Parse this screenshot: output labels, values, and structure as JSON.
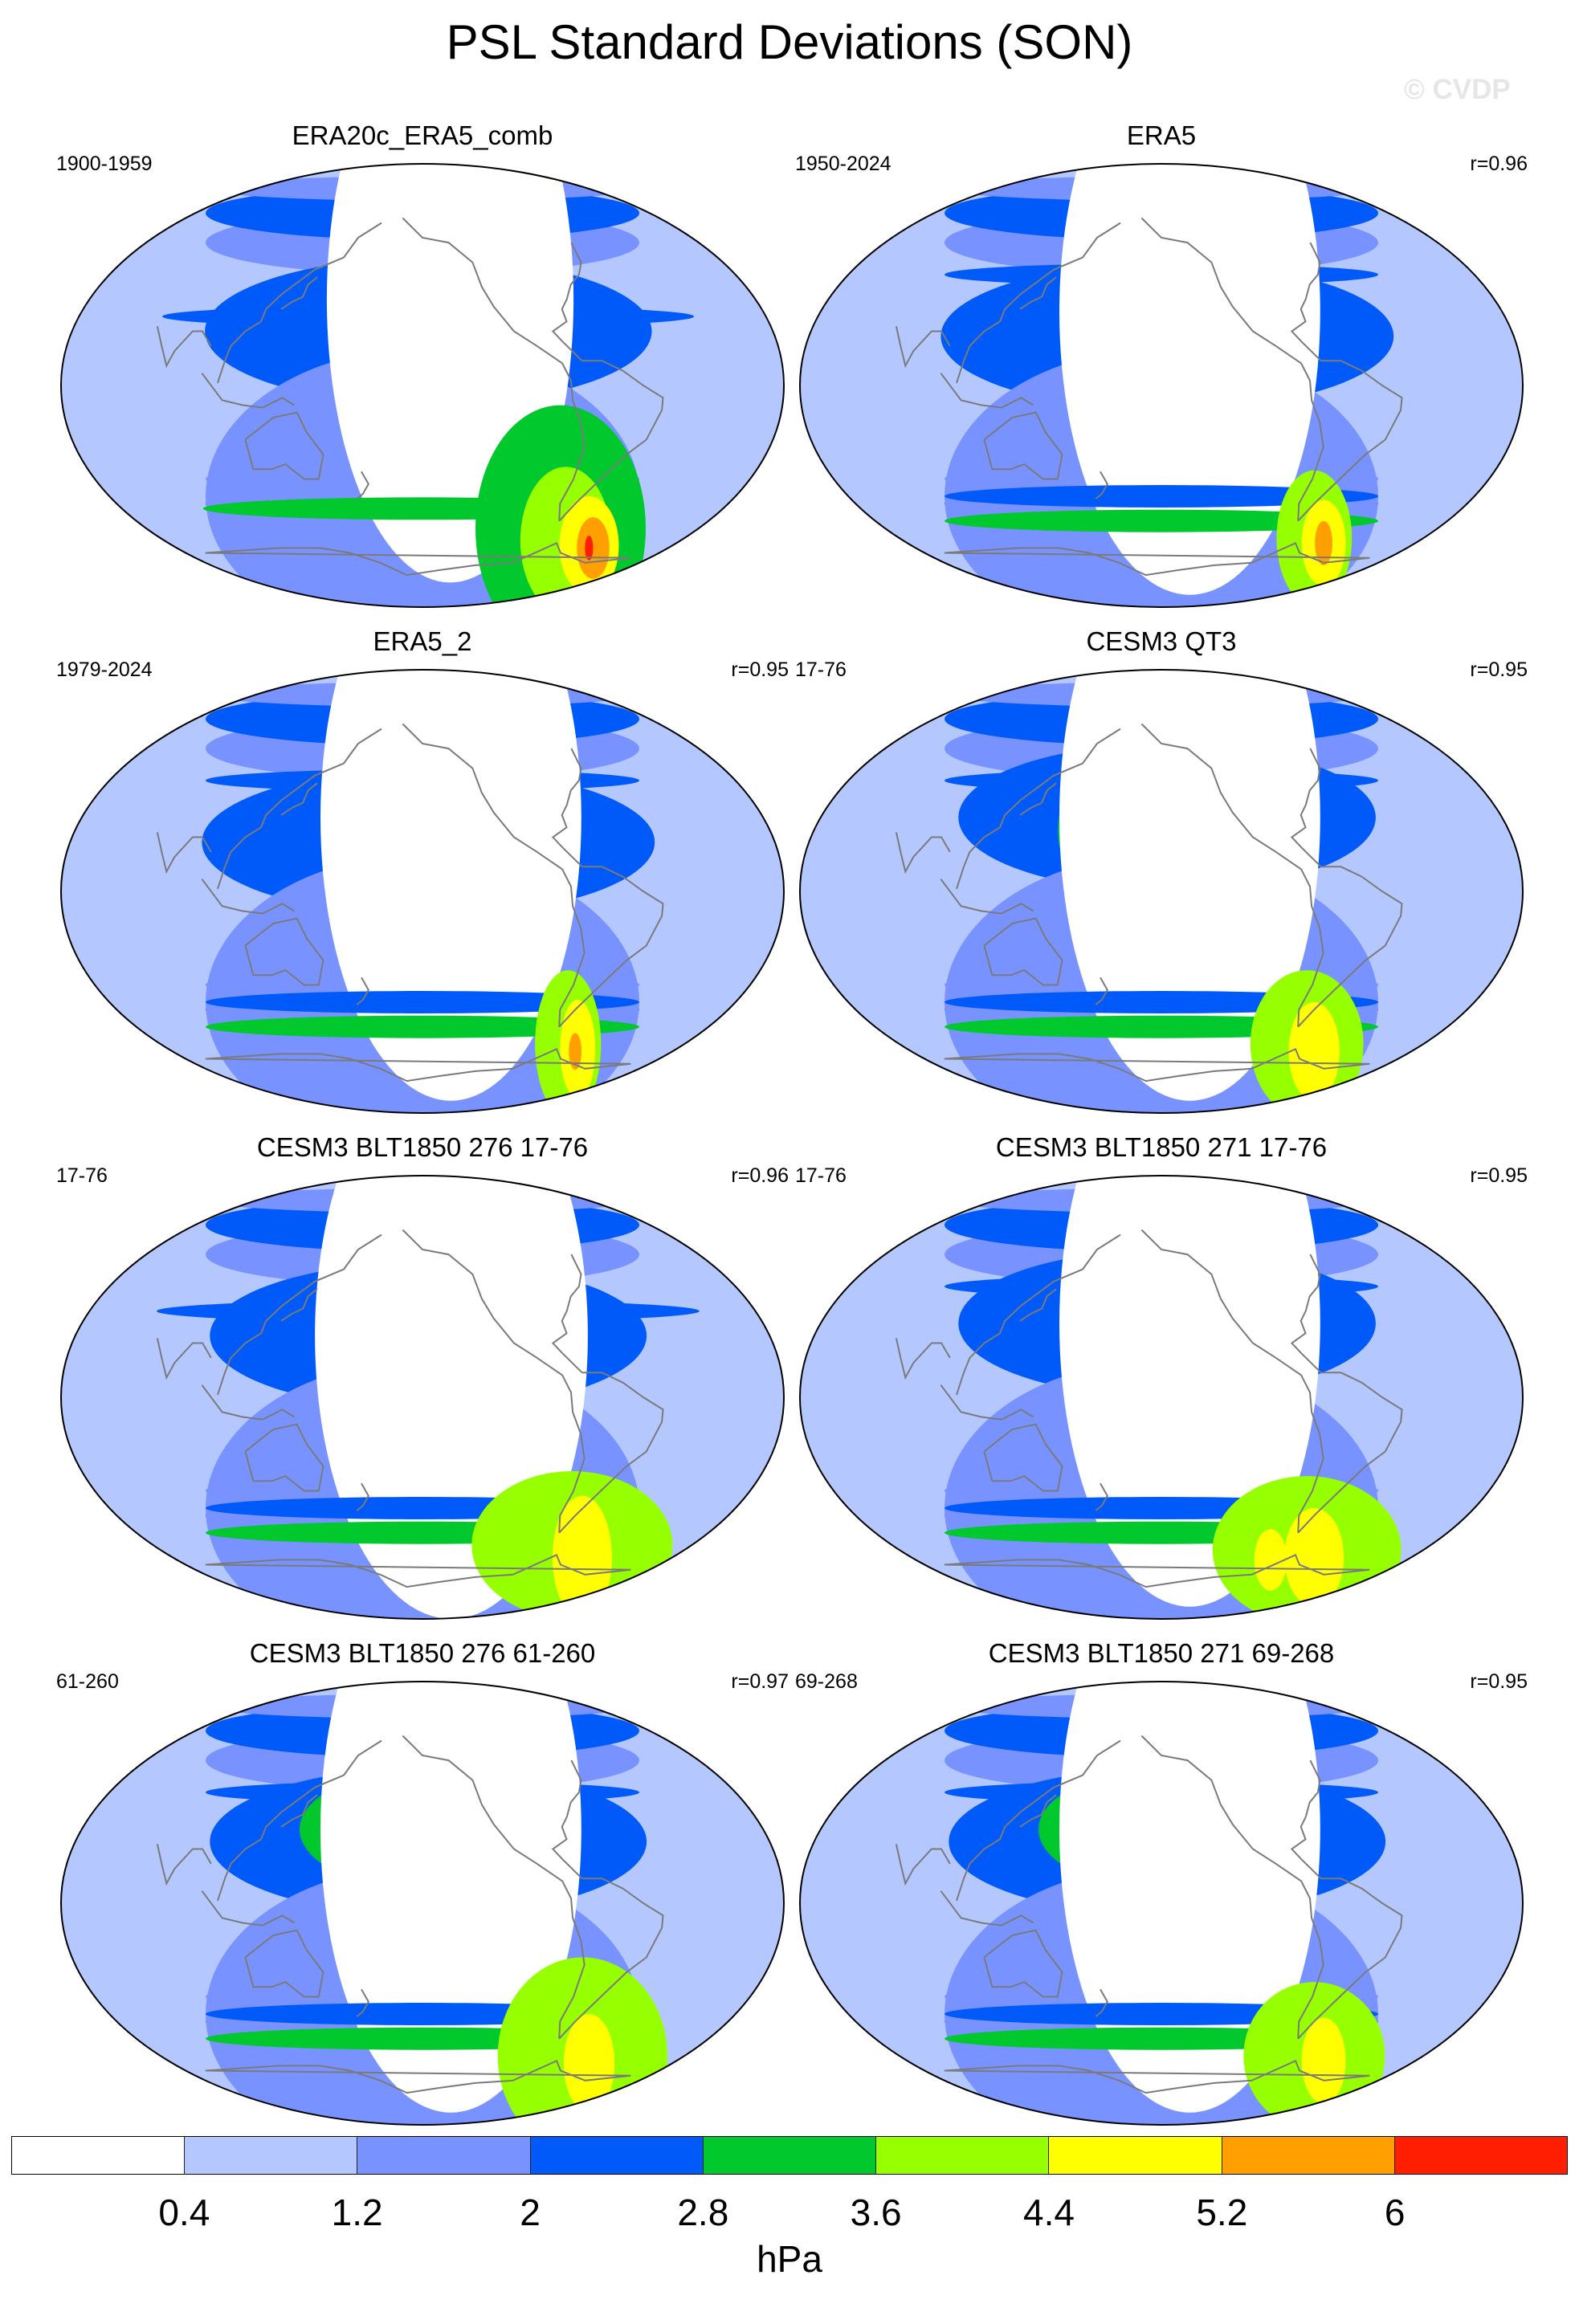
{
  "title": "PSL Standard Deviations (SON)",
  "watermark": "© CVDP",
  "colors": {
    "levels": [
      "#ffffff",
      "#b4c8ff",
      "#7893ff",
      "#005afa",
      "#00c82d",
      "#96ff00",
      "#ffff00",
      "#ffa000",
      "#ff1e00"
    ],
    "coastline": "#7a7a7a",
    "outline": "#000000"
  },
  "panels": [
    {
      "title": "ERA20c_ERA5_comb",
      "period": "1900-1959",
      "corr": "",
      "blobs": [
        [
          3,
          28,
          3,
          300,
          0
        ],
        [
          3,
          22,
          3,
          240,
          60
        ],
        [
          3,
          120,
          3,
          160,
          0
        ],
        [
          2,
          30,
          2,
          80,
          230
        ],
        [
          1,
          -40,
          6,
          600,
          0
        ],
        [
          2,
          -45,
          5,
          400,
          120
        ],
        [
          0,
          35,
          15,
          150,
          230
        ]
      ],
      "s_ext": [
        [
          4,
          -50,
          0,
          340,
          0
        ],
        [
          4,
          -58,
          90,
          160,
          100
        ],
        [
          5,
          -63,
          100,
          100,
          60
        ],
        [
          6,
          -65,
          120,
          70,
          40
        ],
        [
          7,
          -66,
          125,
          40,
          25
        ],
        [
          8,
          -66,
          122,
          10,
          10
        ]
      ]
    },
    {
      "title": "ERA5",
      "period": "1950-2024",
      "corr": "r=0.96",
      "blobs": [
        [
          3,
          45,
          0,
          360,
          0
        ],
        [
          3,
          20,
          3,
          240,
          60
        ],
        [
          4,
          30,
          3,
          120,
          50
        ],
        [
          3,
          20,
          4,
          60,
          30
        ],
        [
          1,
          -40,
          6,
          600,
          0
        ],
        [
          2,
          -45,
          5,
          400,
          120
        ],
        [
          0,
          30,
          15,
          150,
          230
        ]
      ],
      "s_ext": [
        [
          3,
          -45,
          0,
          360,
          0
        ],
        [
          4,
          -55,
          0,
          360,
          0
        ],
        [
          5,
          -62,
          105,
          80,
          55
        ],
        [
          6,
          -64,
          115,
          50,
          35
        ],
        [
          7,
          -64,
          115,
          20,
          18
        ]
      ]
    },
    {
      "title": "ERA5_2",
      "period": "1979-2024",
      "corr": "r=0.95",
      "blobs": [
        [
          3,
          45,
          0,
          360,
          0
        ],
        [
          3,
          20,
          3,
          240,
          60
        ],
        [
          4,
          30,
          4,
          100,
          60
        ],
        [
          3,
          15,
          4,
          60,
          20
        ],
        [
          1,
          -40,
          6,
          600,
          0
        ],
        [
          2,
          -45,
          5,
          400,
          120
        ],
        [
          0,
          30,
          15,
          150,
          230
        ]
      ],
      "s_ext": [
        [
          3,
          -45,
          0,
          360,
          0
        ],
        [
          4,
          -55,
          0,
          360,
          0
        ],
        [
          5,
          -62,
          100,
          70,
          60
        ],
        [
          6,
          -64,
          110,
          40,
          40
        ],
        [
          7,
          -65,
          110,
          15,
          15
        ]
      ]
    },
    {
      "title": "CESM3 QT3",
      "period": "17-76",
      "corr": "r=0.95",
      "blobs": [
        [
          3,
          45,
          0,
          360,
          0
        ],
        [
          3,
          30,
          3,
          240,
          60
        ],
        [
          4,
          25,
          3,
          120,
          80
        ],
        [
          3,
          15,
          3,
          60,
          30
        ],
        [
          1,
          -40,
          6,
          600,
          0
        ],
        [
          2,
          -45,
          5,
          400,
          120
        ],
        [
          0,
          30,
          15,
          150,
          230
        ]
      ],
      "s_ext": [
        [
          3,
          -45,
          0,
          360,
          0
        ],
        [
          4,
          -55,
          0,
          360,
          0
        ],
        [
          5,
          -62,
          100,
          120,
          60
        ],
        [
          6,
          -65,
          110,
          60,
          40
        ]
      ]
    },
    {
      "title": "CESM3 BLT1850 276 17-76",
      "period": "17-76",
      "corr": "r=0.96",
      "blobs": [
        [
          3,
          35,
          3,
          330,
          0
        ],
        [
          3,
          25,
          3,
          240,
          60
        ],
        [
          4,
          22,
          4,
          120,
          60
        ],
        [
          2,
          15,
          2,
          80,
          30
        ],
        [
          1,
          -40,
          6,
          600,
          0
        ],
        [
          2,
          -45,
          5,
          400,
          120
        ],
        [
          0,
          25,
          15,
          150,
          230
        ]
      ],
      "s_ext": [
        [
          3,
          -45,
          0,
          360,
          0
        ],
        [
          4,
          -55,
          0,
          360,
          0
        ],
        [
          5,
          -60,
          100,
          200,
          60
        ],
        [
          6,
          -65,
          115,
          70,
          50
        ]
      ]
    },
    {
      "title": "CESM3 BLT1850 271 17-76",
      "period": "17-76",
      "corr": "r=0.95",
      "blobs": [
        [
          3,
          45,
          0,
          360,
          0
        ],
        [
          3,
          30,
          3,
          240,
          60
        ],
        [
          4,
          35,
          4,
          120,
          90
        ],
        [
          5,
          30,
          3,
          80,
          30
        ],
        [
          6,
          20,
          3,
          50,
          15
        ],
        [
          1,
          -40,
          6,
          600,
          0
        ],
        [
          2,
          -45,
          5,
          400,
          120
        ],
        [
          0,
          30,
          15,
          150,
          230
        ]
      ],
      "s_ext": [
        [
          3,
          -45,
          0,
          360,
          0
        ],
        [
          4,
          -55,
          0,
          360,
          0
        ],
        [
          5,
          -62,
          100,
          200,
          60
        ],
        [
          6,
          -65,
          110,
          70,
          40
        ],
        [
          6,
          -66,
          80,
          40,
          25
        ]
      ]
    },
    {
      "title": "CESM3 BLT1850 276 61-260",
      "period": "61-260",
      "corr": "r=0.97",
      "blobs": [
        [
          3,
          45,
          0,
          360,
          0
        ],
        [
          3,
          25,
          3,
          240,
          60
        ],
        [
          4,
          30,
          4,
          150,
          50
        ],
        [
          3,
          15,
          3,
          80,
          30
        ],
        [
          1,
          -40,
          6,
          600,
          0
        ],
        [
          2,
          -45,
          5,
          400,
          120
        ],
        [
          0,
          30,
          15,
          150,
          230
        ]
      ],
      "s_ext": [
        [
          3,
          -45,
          0,
          360,
          0
        ],
        [
          4,
          -55,
          0,
          360,
          0
        ],
        [
          5,
          -62,
          110,
          180,
          80
        ],
        [
          6,
          -65,
          120,
          60,
          40
        ]
      ]
    },
    {
      "title": "CESM3 BLT1850 271 69-268",
      "period": "69-268",
      "corr": "r=0.95",
      "blobs": [
        [
          3,
          45,
          0,
          360,
          0
        ],
        [
          3,
          25,
          3,
          240,
          60
        ],
        [
          4,
          30,
          4,
          150,
          50
        ],
        [
          3,
          15,
          3,
          70,
          30
        ],
        [
          1,
          -40,
          6,
          600,
          0
        ],
        [
          2,
          -45,
          5,
          400,
          120
        ],
        [
          0,
          30,
          15,
          150,
          230
        ]
      ],
      "s_ext": [
        [
          3,
          -45,
          0,
          360,
          0
        ],
        [
          4,
          -55,
          0,
          360,
          0
        ],
        [
          5,
          -62,
          105,
          150,
          60
        ],
        [
          6,
          -64,
          115,
          50,
          35
        ]
      ]
    }
  ],
  "colorbar": {
    "ticks": [
      "0.4",
      "1.2",
      "2",
      "2.8",
      "3.6",
      "4.4",
      "5.2",
      "6"
    ],
    "units": "hPa"
  }
}
